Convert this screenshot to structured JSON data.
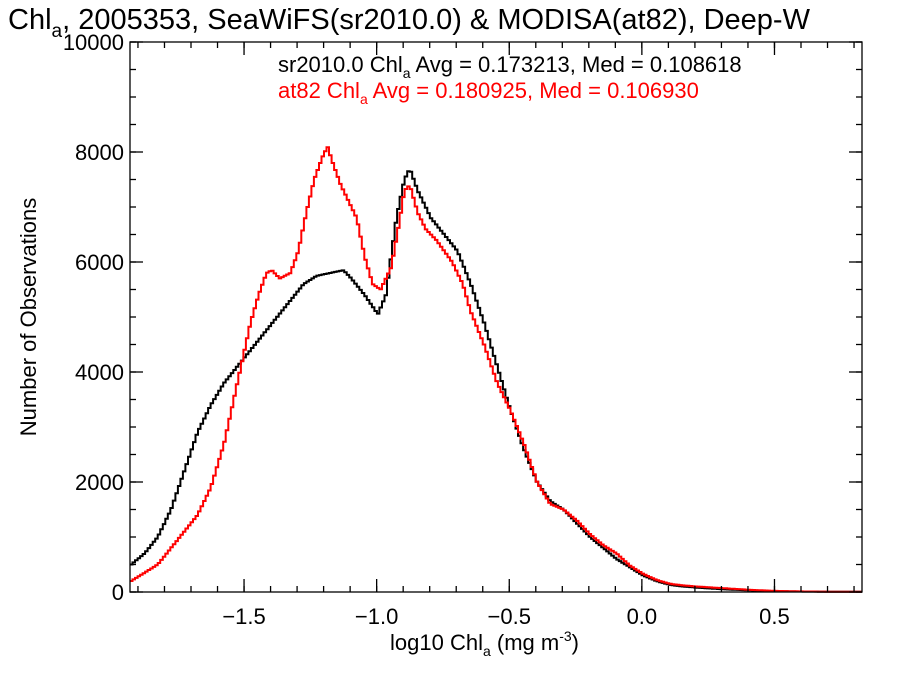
{
  "chart_data": {
    "type": "line",
    "step": true,
    "title": {
      "main": "Chl",
      "sub": "a",
      "rest": ", 2005353, SeaWiFS(sr2010.0) & MODISA(at82), Deep-W"
    },
    "xlabel": {
      "main": "log10 Chl",
      "sub": "a",
      "rest": " (mg m",
      "sup": "-3",
      "end": ")"
    },
    "ylabel": "Number of Observations",
    "xlim": [
      -1.93,
      0.83
    ],
    "ylim": [
      0,
      10000
    ],
    "x_ticks": [
      -1.5,
      -1.0,
      -0.5,
      0.0,
      0.5
    ],
    "x_tick_labels": [
      "−1.5",
      "−1.0",
      "−0.5",
      "0.0",
      "0.5"
    ],
    "y_ticks": [
      0,
      2000,
      4000,
      6000,
      8000,
      10000
    ],
    "y_tick_labels": [
      "0",
      "2000",
      "4000",
      "6000",
      "8000",
      "10000"
    ],
    "grid": false,
    "annotations": [
      {
        "pre": "sr2010.0 Chl",
        "sub": "a",
        "post": " Avg = 0.173213, Med = 0.108618",
        "color": "#000000"
      },
      {
        "pre": "at82 Chl",
        "sub": "a",
        "post": " Avg = 0.180925, Med = 0.106930",
        "color": "#ff0000"
      }
    ],
    "series": [
      {
        "color": "#000000",
        "x": [
          -1.93,
          -1.88,
          -1.83,
          -1.78,
          -1.73,
          -1.68,
          -1.63,
          -1.58,
          -1.53,
          -1.48,
          -1.43,
          -1.38,
          -1.33,
          -1.28,
          -1.23,
          -1.18,
          -1.13,
          -1.1,
          -1.05,
          -1.0,
          -0.97,
          -0.93,
          -0.9,
          -0.88,
          -0.85,
          -0.8,
          -0.75,
          -0.7,
          -0.65,
          -0.6,
          -0.55,
          -0.5,
          -0.45,
          -0.4,
          -0.35,
          -0.3,
          -0.25,
          -0.2,
          -0.15,
          -0.1,
          -0.05,
          0.0,
          0.05,
          0.1,
          0.15,
          0.2,
          0.3,
          0.4,
          0.5,
          0.6,
          0.7,
          0.83
        ],
        "y": [
          500,
          700,
          1000,
          1500,
          2200,
          2900,
          3400,
          3800,
          4100,
          4400,
          4700,
          5000,
          5300,
          5600,
          5750,
          5800,
          5850,
          5700,
          5400,
          5050,
          5400,
          6800,
          7500,
          7700,
          7300,
          6800,
          6500,
          6200,
          5600,
          4900,
          4100,
          3300,
          2600,
          2000,
          1650,
          1500,
          1250,
          1000,
          800,
          600,
          450,
          300,
          200,
          130,
          100,
          80,
          50,
          30,
          15,
          8,
          5,
          3
        ]
      },
      {
        "color": "#ff0000",
        "x": [
          -1.93,
          -1.88,
          -1.83,
          -1.78,
          -1.73,
          -1.68,
          -1.63,
          -1.58,
          -1.53,
          -1.48,
          -1.45,
          -1.42,
          -1.4,
          -1.37,
          -1.33,
          -1.3,
          -1.27,
          -1.24,
          -1.21,
          -1.19,
          -1.17,
          -1.14,
          -1.11,
          -1.08,
          -1.05,
          -1.02,
          -0.99,
          -0.95,
          -0.92,
          -0.9,
          -0.88,
          -0.85,
          -0.82,
          -0.78,
          -0.75,
          -0.72,
          -0.68,
          -0.65,
          -0.6,
          -0.55,
          -0.5,
          -0.45,
          -0.4,
          -0.35,
          -0.3,
          -0.25,
          -0.2,
          -0.15,
          -0.1,
          -0.05,
          0.0,
          0.05,
          0.1,
          0.15,
          0.2,
          0.3,
          0.4,
          0.5,
          0.6,
          0.7,
          0.83
        ],
        "y": [
          200,
          350,
          500,
          800,
          1100,
          1400,
          1900,
          2700,
          3800,
          4900,
          5400,
          5800,
          5850,
          5700,
          5800,
          6200,
          6900,
          7500,
          7900,
          8100,
          7800,
          7400,
          7100,
          6800,
          6100,
          5600,
          5500,
          5900,
          6700,
          7300,
          7400,
          6900,
          6600,
          6400,
          6200,
          6000,
          5600,
          5100,
          4500,
          3800,
          3300,
          2700,
          2000,
          1600,
          1500,
          1300,
          1050,
          850,
          700,
          480,
          330,
          220,
          150,
          120,
          100,
          70,
          40,
          20,
          10,
          6,
          3
        ]
      }
    ]
  }
}
